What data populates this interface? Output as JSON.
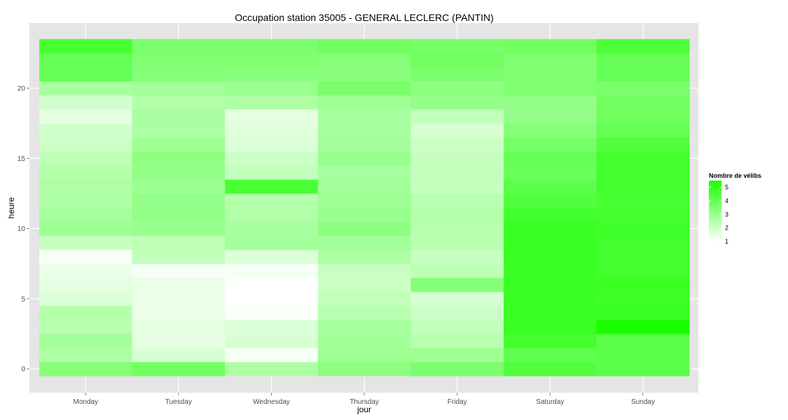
{
  "chart_data": {
    "type": "heatmap",
    "title": "Occupation station 35005 - GENERAL LECLERC (PANTIN)",
    "xlabel": "jour",
    "ylabel": "heure",
    "categories": [
      "Monday",
      "Tuesday",
      "Wednesday",
      "Thursday",
      "Friday",
      "Saturday",
      "Sunday"
    ],
    "y_values": [
      0,
      1,
      2,
      3,
      4,
      5,
      6,
      7,
      8,
      9,
      10,
      11,
      12,
      13,
      14,
      15,
      16,
      17,
      18,
      19,
      20,
      21,
      22,
      23
    ],
    "y_ticks": [
      0,
      5,
      10,
      15,
      20
    ],
    "ylim": [
      -0.5,
      23.5
    ],
    "grid": true,
    "legend_position": "right",
    "legend": {
      "title": "Nombre de vélibs",
      "breaks": [
        1,
        2,
        3,
        4,
        5
      ],
      "low_color": "#ffffff",
      "high_color": "#1aff00",
      "range": [
        1,
        5.5
      ]
    },
    "values": [
      [
        3.8,
        3.9,
        3.2,
        1.5,
        1.6,
        1.6
      ],
      [
        2.6,
        1.7,
        1.1,
        1.1,
        1.0,
        1.0
      ],
      [
        3.0,
        2.8,
        2.6,
        2.3,
        2.0,
        2.4
      ],
      [
        2.3,
        2.5,
        2.0,
        2.1,
        2.2,
        1.8
      ],
      [
        2.1,
        1.6,
        1.8,
        1.4,
        3.2,
        1.1
      ],
      [
        4.8,
        4.7,
        4.8,
        5.2,
        4.9,
        4.8
      ],
      [
        4.5,
        4.6,
        4.8,
        5.6,
        4.8,
        4.9
      ],
      [
        1.2,
        1.3,
        1.4,
        1.9,
        2.0,
        3.0
      ],
      [
        3.0,
        3.2,
        2.9,
        2.8,
        2.7,
        2.5
      ],
      [
        4.0,
        4.0,
        3.8,
        3.6,
        4.2,
        4.5
      ],
      [
        4.1,
        4.2,
        4.3,
        4.4,
        4.5,
        4.4
      ],
      [
        3.4,
        3.6,
        3.7,
        3.9,
        4.0,
        4.2
      ],
      [
        4.4,
        4.6,
        4.6,
        4.7,
        4.7,
        4.6
      ],
      [
        3.6,
        3.8,
        3.9,
        4.1,
        4.3,
        4.4
      ]
    ]
  },
  "heat": {
    "Monday": [
      3.4,
      2.6,
      2.8,
      2.4,
      2.5,
      1.7,
      1.5,
      1.4,
      1.2,
      2.1,
      2.9,
      2.7,
      2.6,
      2.6,
      2.5,
      2.3,
      2.0,
      1.9,
      1.5,
      1.9,
      2.7,
      4.0,
      4.0,
      4.6
    ],
    "Tuesday": [
      3.8,
      1.8,
      1.5,
      1.5,
      1.4,
      1.4,
      1.4,
      1.2,
      2.2,
      2.3,
      3.0,
      3.1,
      3.1,
      2.9,
      3.1,
      3.2,
      2.9,
      2.6,
      2.7,
      2.5,
      2.8,
      3.4,
      3.5,
      3.6
    ],
    "Wednesday": [
      2.6,
      1.2,
      1.8,
      1.7,
      1.1,
      1.0,
      1.0,
      1.2,
      1.7,
      2.8,
      2.7,
      2.5,
      2.5,
      4.6,
      2.2,
      2.0,
      1.7,
      1.6,
      1.5,
      2.6,
      3.0,
      3.3,
      3.5,
      3.6
    ],
    "Thursday": [
      3.2,
      2.9,
      2.8,
      2.7,
      2.4,
      2.2,
      2.0,
      2.1,
      2.6,
      2.8,
      3.2,
      3.0,
      2.9,
      2.8,
      2.7,
      3.0,
      2.8,
      2.7,
      2.7,
      2.9,
      3.6,
      3.3,
      3.4,
      3.8
    ],
    "Friday": [
      3.6,
      2.9,
      2.4,
      2.2,
      2.0,
      1.8,
      3.4,
      2.3,
      2.1,
      2.4,
      2.4,
      2.5,
      2.4,
      2.1,
      2.2,
      2.1,
      2.0,
      1.8,
      2.2,
      3.1,
      3.2,
      3.6,
      3.8,
      3.7
    ],
    "Saturday": [
      4.4,
      4.1,
      4.7,
      4.9,
      4.9,
      4.9,
      4.9,
      4.9,
      4.9,
      4.9,
      4.9,
      4.7,
      4.4,
      4.2,
      3.9,
      4.0,
      3.7,
      3.4,
      3.1,
      3.1,
      3.5,
      3.5,
      3.5,
      3.8
    ],
    "Sunday": [
      4.2,
      4.2,
      4.2,
      5.5,
      4.9,
      4.8,
      4.9,
      4.7,
      4.7,
      4.7,
      4.8,
      4.7,
      4.6,
      4.7,
      4.7,
      4.7,
      4.4,
      4.0,
      3.8,
      3.8,
      3.6,
      4.0,
      4.0,
      4.5
    ]
  }
}
